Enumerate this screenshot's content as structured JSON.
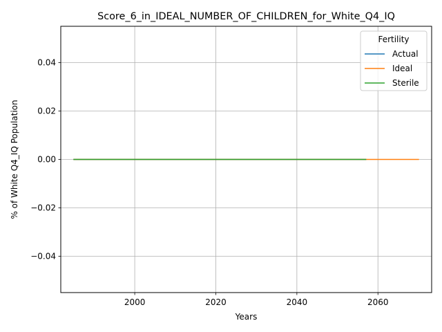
{
  "chart_data": {
    "type": "line",
    "title": "Score_6_in_IDEAL_NUMBER_OF_CHILDREN_for_White_Q4_IQ",
    "xlabel": "Years",
    "ylabel": "% of White Q4_IQ Population",
    "xlim": [
      1981.75,
      2073.25
    ],
    "ylim": [
      -0.055,
      0.055
    ],
    "xticks": [
      2000,
      2020,
      2040,
      2060
    ],
    "xtick_labels": [
      "2000",
      "2020",
      "2040",
      "2060"
    ],
    "yticks": [
      -0.04,
      -0.02,
      0.0,
      0.02,
      0.04
    ],
    "ytick_labels": [
      "−0.04",
      "−0.02",
      "0.00",
      "0.02",
      "0.04"
    ],
    "grid": true,
    "legend": {
      "title": "Fertility",
      "position": "top-right"
    },
    "series": [
      {
        "name": "Actual",
        "color": "#1f77b4",
        "x": [
          1985,
          2057
        ],
        "y": [
          0,
          0
        ]
      },
      {
        "name": "Ideal",
        "color": "#ff7f0e",
        "x": [
          1985,
          2070
        ],
        "y": [
          0,
          0
        ]
      },
      {
        "name": "Sterile",
        "color": "#2ca02c",
        "x": [
          1985,
          2057
        ],
        "y": [
          0,
          0
        ]
      }
    ]
  }
}
